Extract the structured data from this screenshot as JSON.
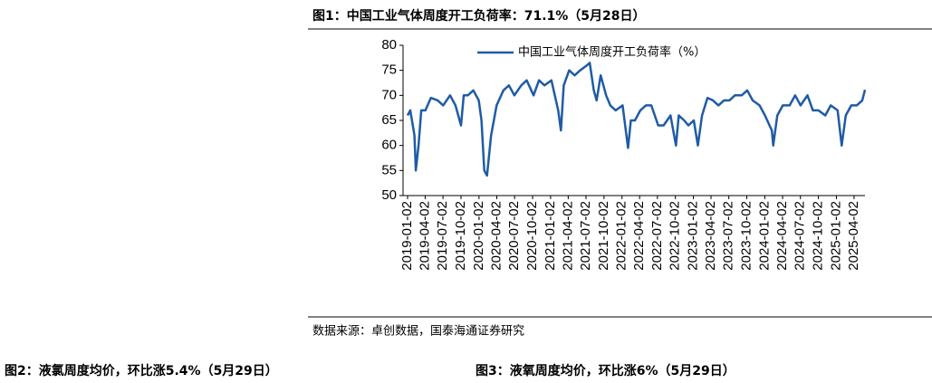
{
  "chart_data": {
    "type": "line",
    "title": "图1：中国工业气体周度开工负荷率：71.1%（5月28日）",
    "source": "数据来源：卓创数据，国泰海通证券研究",
    "next_titles": [
      "图2：液氯周度均价，环比涨5.4%（5月29日）",
      "图3：液氧周度均价，环比涨6%（5月29日）"
    ],
    "x": [
      "2019-01-02",
      "2019-01-16",
      "2019-02-06",
      "2019-02-13",
      "2019-02-27",
      "2019-03-13",
      "2019-04-03",
      "2019-05-01",
      "2019-06-05",
      "2019-07-03",
      "2019-08-07",
      "2019-09-04",
      "2019-10-02",
      "2019-10-16",
      "2019-11-06",
      "2019-12-04",
      "2020-01-01",
      "2020-01-15",
      "2020-01-29",
      "2020-02-12",
      "2020-03-04",
      "2020-04-01",
      "2020-05-06",
      "2020-06-03",
      "2020-07-01",
      "2020-08-05",
      "2020-09-02",
      "2020-10-07",
      "2020-11-04",
      "2020-12-02",
      "2021-01-06",
      "2021-02-10",
      "2021-02-24",
      "2021-03-10",
      "2021-04-07",
      "2021-05-05",
      "2021-06-02",
      "2021-07-07",
      "2021-07-21",
      "2021-08-11",
      "2021-08-25",
      "2021-09-15",
      "2021-10-13",
      "2021-11-03",
      "2021-12-01",
      "2022-01-05",
      "2022-02-02",
      "2022-02-16",
      "2022-03-09",
      "2022-04-06",
      "2022-05-04",
      "2022-06-01",
      "2022-07-06",
      "2022-08-03",
      "2022-09-07",
      "2022-10-05",
      "2022-10-19",
      "2022-11-16",
      "2022-12-07",
      "2023-01-04",
      "2023-01-25",
      "2023-02-15",
      "2023-03-15",
      "2023-04-12",
      "2023-05-10",
      "2023-06-07",
      "2023-07-05",
      "2023-08-02",
      "2023-09-06",
      "2023-10-04",
      "2023-11-01",
      "2023-12-06",
      "2024-01-03",
      "2024-02-07",
      "2024-02-14",
      "2024-03-06",
      "2024-04-03",
      "2024-05-08",
      "2024-06-05",
      "2024-07-03",
      "2024-08-07",
      "2024-09-04",
      "2024-10-02",
      "2024-11-06",
      "2024-12-04",
      "2025-01-08",
      "2025-01-29",
      "2025-02-19",
      "2025-03-19",
      "2025-04-16",
      "2025-05-14",
      "2025-05-28"
    ],
    "series": [
      {
        "name": "中国工业气体周度开工负荷率（%）",
        "color": "#1f5ba6",
        "values": [
          66,
          67,
          62,
          55,
          60,
          67,
          67,
          69.5,
          69,
          68,
          70,
          68,
          64,
          70,
          70,
          71,
          69,
          65,
          55,
          54,
          62,
          68,
          71,
          72,
          70,
          72,
          73,
          70,
          73,
          72,
          73,
          67,
          63,
          72,
          75,
          74,
          75,
          76,
          76.5,
          71,
          69,
          74,
          70,
          68,
          67,
          68,
          59.5,
          65,
          65,
          67,
          68,
          68,
          64,
          64,
          66,
          60,
          66,
          65,
          64,
          65,
          60,
          66,
          69.5,
          69,
          68,
          69,
          69,
          70,
          70,
          71,
          69,
          68,
          66,
          63,
          60,
          66,
          68,
          68,
          70,
          68,
          70,
          67,
          67,
          66,
          68,
          67,
          60,
          66,
          68,
          68,
          69,
          71.1
        ]
      }
    ],
    "xlim": [
      "2019-01-02",
      "2025-05-28"
    ],
    "xticks": [
      "2019-01-02",
      "2019-04-02",
      "2019-07-02",
      "2019-10-02",
      "2020-01-02",
      "2020-04-02",
      "2020-07-02",
      "2020-10-02",
      "2021-01-02",
      "2021-04-02",
      "2021-07-02",
      "2021-10-02",
      "2022-01-02",
      "2022-04-02",
      "2022-07-02",
      "2022-10-02",
      "2023-01-02",
      "2023-04-02",
      "2023-07-02",
      "2023-10-02",
      "2024-01-02",
      "2024-04-02",
      "2024-07-02",
      "2024-10-02",
      "2025-01-02",
      "2025-04-02"
    ],
    "ylim": [
      50,
      80
    ],
    "yticks": [
      50,
      55,
      60,
      65,
      70,
      75,
      80
    ],
    "grid": false
  }
}
